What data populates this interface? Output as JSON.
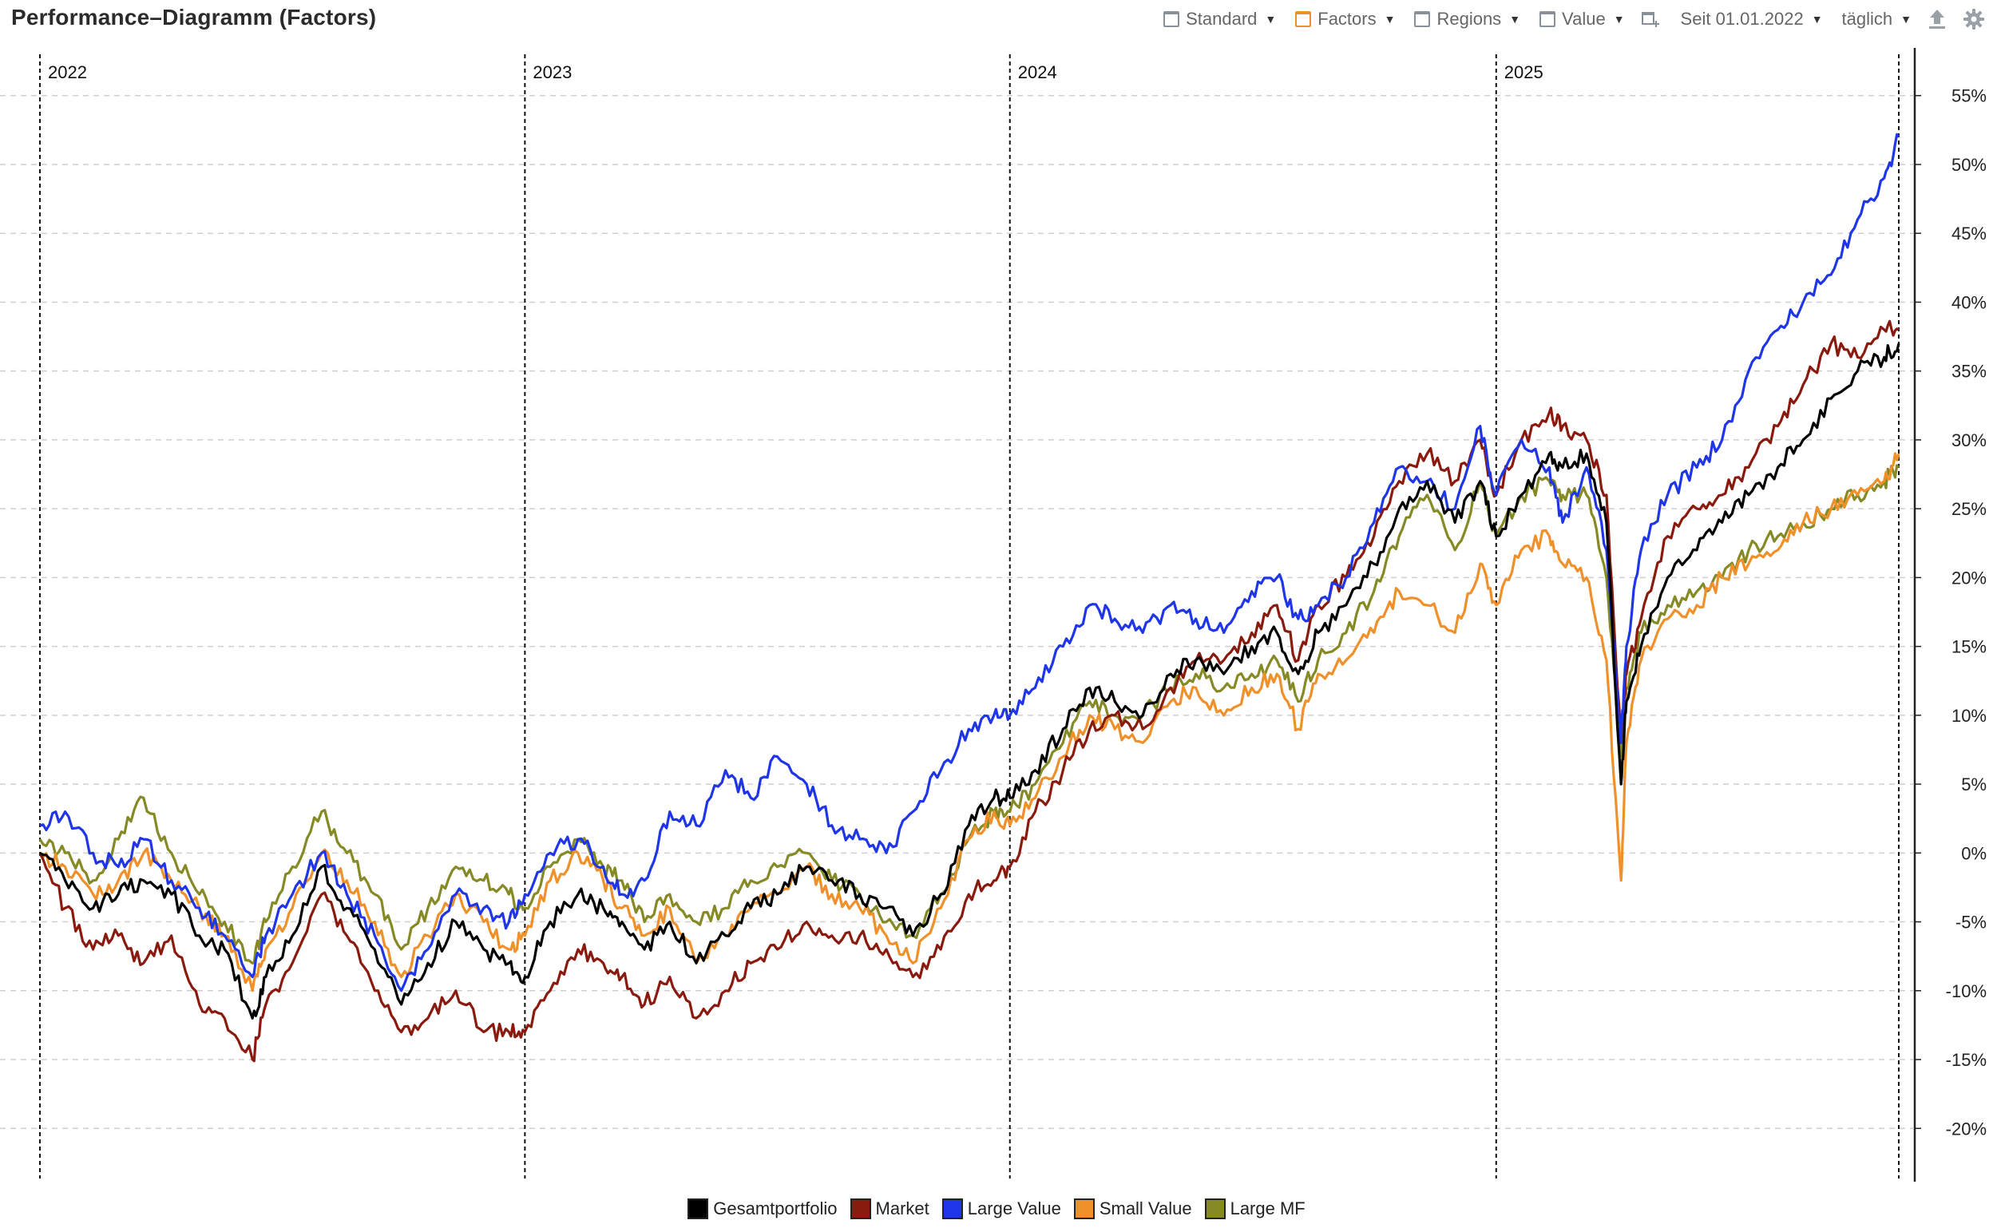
{
  "title": "Performance–Diagramm (Factors)",
  "toolbar": {
    "standard": "Standard",
    "factors": "Factors",
    "regions": "Regions",
    "value": "Value",
    "since": "Seit 01.01.2022",
    "interval": "täglich"
  },
  "colors": {
    "Gesamtportfolio": "#000000",
    "Market": "#8b1a0e",
    "Large Value": "#1f35e8",
    "Small Value": "#f0902a",
    "Large MF": "#868a24",
    "grid": "#cfcfcf",
    "axis": "#222222"
  },
  "chart_data": {
    "type": "line",
    "title": "Performance–Diagramm (Factors)",
    "xlabel": "",
    "ylabel": "",
    "x_range": [
      "2022-01-01",
      "2025-10-31"
    ],
    "ylim": [
      -23,
      58
    ],
    "y_ticks": [
      -20,
      -15,
      -10,
      -5,
      0,
      5,
      10,
      15,
      20,
      25,
      30,
      35,
      40,
      45,
      50,
      55
    ],
    "y_tick_labels": [
      "-20%",
      "-15%",
      "-10%",
      "-5%",
      "0%",
      "5%",
      "10%",
      "15%",
      "20%",
      "25%",
      "30%",
      "35%",
      "40%",
      "45%",
      "50%",
      "55%"
    ],
    "year_markers": [
      {
        "label": "2022",
        "x": "2022-01-01"
      },
      {
        "label": "2023",
        "x": "2023-01-01"
      },
      {
        "label": "2024",
        "x": "2024-01-01"
      },
      {
        "label": "2025",
        "x": "2025-01-01"
      }
    ],
    "grid": true,
    "legend_position": "bottom",
    "series": [
      {
        "name": "Gesamtportfolio",
        "x": [
          "2022-01-01",
          "2022-01-20",
          "2022-02-10",
          "2022-03-01",
          "2022-03-20",
          "2022-04-10",
          "2022-05-01",
          "2022-05-20",
          "2022-06-10",
          "2022-06-20",
          "2022-07-10",
          "2022-08-01",
          "2022-08-20",
          "2022-09-10",
          "2022-09-30",
          "2022-10-20",
          "2022-11-10",
          "2022-12-01",
          "2022-12-20",
          "2023-01-01",
          "2023-01-20",
          "2023-02-10",
          "2023-03-01",
          "2023-03-15",
          "2023-04-01",
          "2023-04-20",
          "2023-05-10",
          "2023-06-01",
          "2023-06-20",
          "2023-07-10",
          "2023-08-01",
          "2023-08-20",
          "2023-09-10",
          "2023-09-30",
          "2023-10-20",
          "2023-11-10",
          "2023-12-01",
          "2023-12-20",
          "2024-01-01",
          "2024-01-20",
          "2024-02-10",
          "2024-03-01",
          "2024-03-20",
          "2024-04-10",
          "2024-05-01",
          "2024-05-20",
          "2024-06-10",
          "2024-07-01",
          "2024-07-20",
          "2024-08-05",
          "2024-08-20",
          "2024-09-10",
          "2024-10-01",
          "2024-10-20",
          "2024-11-10",
          "2024-12-01",
          "2024-12-20",
          "2025-01-01",
          "2025-01-20",
          "2025-02-10",
          "2025-02-20",
          "2025-03-10",
          "2025-03-25",
          "2025-04-05",
          "2025-04-09",
          "2025-04-20",
          "2025-05-10",
          "2025-06-01",
          "2025-06-20",
          "2025-07-10",
          "2025-08-01",
          "2025-08-20",
          "2025-09-10",
          "2025-09-30",
          "2025-10-20",
          "2025-10-31"
        ],
        "values": [
          0,
          -2,
          -4,
          -3,
          -2,
          -3,
          -6,
          -7,
          -12,
          -9,
          -6,
          -1,
          -4,
          -7,
          -11,
          -8,
          -5,
          -7,
          -8,
          -9,
          -5,
          -3,
          -4,
          -5,
          -7,
          -5,
          -8,
          -6,
          -4,
          -3,
          -1,
          -2,
          -3,
          -4,
          -6,
          -3,
          2,
          4,
          4,
          6,
          9,
          12,
          11,
          10,
          13,
          14,
          13,
          15,
          16,
          13,
          16,
          18,
          21,
          25,
          27,
          24,
          27,
          23,
          26,
          29,
          28,
          29,
          24,
          5,
          11,
          15,
          20,
          22,
          24,
          26,
          28,
          30,
          33,
          35,
          36,
          37
        ]
      },
      {
        "name": "Market",
        "x": [
          "2022-01-01",
          "2022-01-20",
          "2022-02-10",
          "2022-03-01",
          "2022-03-20",
          "2022-04-10",
          "2022-05-01",
          "2022-05-20",
          "2022-06-10",
          "2022-06-20",
          "2022-07-10",
          "2022-08-01",
          "2022-08-20",
          "2022-09-10",
          "2022-09-30",
          "2022-10-20",
          "2022-11-10",
          "2022-12-01",
          "2022-12-20",
          "2023-01-01",
          "2023-01-20",
          "2023-02-10",
          "2023-03-01",
          "2023-03-15",
          "2023-04-01",
          "2023-04-20",
          "2023-05-10",
          "2023-06-01",
          "2023-06-20",
          "2023-07-10",
          "2023-08-01",
          "2023-08-20",
          "2023-09-10",
          "2023-09-30",
          "2023-10-20",
          "2023-11-10",
          "2023-12-01",
          "2023-12-20",
          "2024-01-01",
          "2024-01-20",
          "2024-02-10",
          "2024-03-01",
          "2024-03-20",
          "2024-04-10",
          "2024-05-01",
          "2024-05-20",
          "2024-06-10",
          "2024-07-01",
          "2024-07-20",
          "2024-08-05",
          "2024-08-20",
          "2024-09-10",
          "2024-10-01",
          "2024-10-20",
          "2024-11-10",
          "2024-12-01",
          "2024-12-20",
          "2025-01-01",
          "2025-01-20",
          "2025-02-10",
          "2025-02-20",
          "2025-03-10",
          "2025-03-25",
          "2025-04-05",
          "2025-04-09",
          "2025-04-20",
          "2025-05-10",
          "2025-06-01",
          "2025-06-20",
          "2025-07-10",
          "2025-08-01",
          "2025-08-20",
          "2025-09-10",
          "2025-09-30",
          "2025-10-20",
          "2025-10-31"
        ],
        "values": [
          0,
          -4,
          -7,
          -6,
          -8,
          -6,
          -11,
          -12,
          -15,
          -11,
          -8,
          -3,
          -6,
          -10,
          -13,
          -12,
          -10,
          -13,
          -13,
          -13,
          -10,
          -7,
          -8,
          -9,
          -11,
          -9,
          -12,
          -10,
          -8,
          -7,
          -5,
          -6,
          -6,
          -7,
          -9,
          -7,
          -3,
          -2,
          -1,
          3,
          6,
          9,
          10,
          9,
          12,
          14,
          14,
          16,
          18,
          14,
          18,
          20,
          23,
          27,
          29,
          27,
          30,
          26,
          30,
          32,
          31,
          30,
          26,
          8,
          13,
          17,
          23,
          25,
          26,
          28,
          31,
          34,
          37,
          36,
          38,
          38
        ]
      },
      {
        "name": "Large Value",
        "x": [
          "2022-01-01",
          "2022-01-20",
          "2022-02-10",
          "2022-03-01",
          "2022-03-20",
          "2022-04-10",
          "2022-05-01",
          "2022-05-20",
          "2022-06-10",
          "2022-06-20",
          "2022-07-10",
          "2022-08-01",
          "2022-08-20",
          "2022-09-10",
          "2022-09-30",
          "2022-10-20",
          "2022-11-10",
          "2022-12-01",
          "2022-12-20",
          "2023-01-01",
          "2023-01-20",
          "2023-02-10",
          "2023-03-01",
          "2023-03-15",
          "2023-04-01",
          "2023-04-20",
          "2023-05-10",
          "2023-06-01",
          "2023-06-20",
          "2023-07-10",
          "2023-08-01",
          "2023-08-20",
          "2023-09-10",
          "2023-09-30",
          "2023-10-20",
          "2023-11-10",
          "2023-12-01",
          "2023-12-20",
          "2024-01-01",
          "2024-01-20",
          "2024-02-10",
          "2024-03-01",
          "2024-03-20",
          "2024-04-10",
          "2024-05-01",
          "2024-05-20",
          "2024-06-10",
          "2024-07-01",
          "2024-07-20",
          "2024-08-05",
          "2024-08-20",
          "2024-09-10",
          "2024-10-01",
          "2024-10-20",
          "2024-11-10",
          "2024-12-01",
          "2024-12-20",
          "2025-01-01",
          "2025-01-20",
          "2025-02-10",
          "2025-02-20",
          "2025-03-10",
          "2025-03-25",
          "2025-04-05",
          "2025-04-09",
          "2025-04-20",
          "2025-05-10",
          "2025-06-01",
          "2025-06-20",
          "2025-07-10",
          "2025-08-01",
          "2025-08-20",
          "2025-09-10",
          "2025-09-30",
          "2025-10-20",
          "2025-10-31"
        ],
        "values": [
          2,
          3,
          0,
          -1,
          1,
          -2,
          -4,
          -6,
          -9,
          -6,
          -3,
          0,
          -3,
          -6,
          -10,
          -7,
          -3,
          -4,
          -5,
          -3,
          0,
          1,
          -1,
          -3,
          -2,
          3,
          2,
          6,
          4,
          7,
          5,
          2,
          1,
          0,
          3,
          6,
          9,
          10,
          10,
          12,
          15,
          18,
          17,
          16,
          18,
          17,
          16,
          19,
          20,
          17,
          18,
          20,
          24,
          28,
          27,
          25,
          31,
          26,
          30,
          28,
          24,
          28,
          22,
          8,
          15,
          22,
          26,
          28,
          30,
          35,
          38,
          40,
          42,
          46,
          49,
          52
        ]
      },
      {
        "name": "Small Value",
        "x": [
          "2022-01-01",
          "2022-01-20",
          "2022-02-10",
          "2022-03-01",
          "2022-03-20",
          "2022-04-10",
          "2022-05-01",
          "2022-05-20",
          "2022-06-10",
          "2022-06-20",
          "2022-07-10",
          "2022-08-01",
          "2022-08-20",
          "2022-09-10",
          "2022-09-30",
          "2022-10-20",
          "2022-11-10",
          "2022-12-01",
          "2022-12-20",
          "2023-01-01",
          "2023-01-20",
          "2023-02-10",
          "2023-03-01",
          "2023-03-15",
          "2023-04-01",
          "2023-04-20",
          "2023-05-10",
          "2023-06-01",
          "2023-06-20",
          "2023-07-10",
          "2023-08-01",
          "2023-08-20",
          "2023-09-10",
          "2023-09-30",
          "2023-10-20",
          "2023-11-10",
          "2023-12-01",
          "2023-12-20",
          "2024-01-01",
          "2024-01-20",
          "2024-02-10",
          "2024-03-01",
          "2024-03-20",
          "2024-04-10",
          "2024-05-01",
          "2024-05-20",
          "2024-06-10",
          "2024-07-01",
          "2024-07-20",
          "2024-08-05",
          "2024-08-20",
          "2024-09-10",
          "2024-10-01",
          "2024-10-20",
          "2024-11-10",
          "2024-12-01",
          "2024-12-20",
          "2025-01-01",
          "2025-01-20",
          "2025-02-10",
          "2025-02-20",
          "2025-03-10",
          "2025-03-25",
          "2025-04-05",
          "2025-04-09",
          "2025-04-20",
          "2025-05-10",
          "2025-06-01",
          "2025-06-20",
          "2025-07-10",
          "2025-08-01",
          "2025-08-20",
          "2025-09-10",
          "2025-09-30",
          "2025-10-20",
          "2025-10-31"
        ],
        "values": [
          0,
          -1,
          -3,
          -2,
          0,
          -2,
          -4,
          -6,
          -10,
          -7,
          -4,
          0,
          -2,
          -5,
          -9,
          -6,
          -3,
          -5,
          -7,
          -6,
          -2,
          0,
          -2,
          -4,
          -6,
          -4,
          -8,
          -6,
          -4,
          -3,
          -1,
          -3,
          -4,
          -6,
          -8,
          -4,
          1,
          3,
          2,
          4,
          7,
          10,
          9,
          8,
          11,
          12,
          10,
          12,
          13,
          9,
          13,
          14,
          16,
          19,
          18,
          16,
          21,
          18,
          22,
          23,
          21,
          20,
          14,
          -2,
          8,
          14,
          17,
          18,
          20,
          21,
          22,
          24,
          25,
          26,
          27,
          29
        ]
      },
      {
        "name": "Large MF",
        "x": [
          "2022-01-01",
          "2022-01-20",
          "2022-02-10",
          "2022-03-01",
          "2022-03-20",
          "2022-04-10",
          "2022-05-01",
          "2022-05-20",
          "2022-06-10",
          "2022-06-20",
          "2022-07-10",
          "2022-08-01",
          "2022-08-20",
          "2022-09-10",
          "2022-09-30",
          "2022-10-20",
          "2022-11-10",
          "2022-12-01",
          "2022-12-20",
          "2023-01-01",
          "2023-01-20",
          "2023-02-10",
          "2023-03-01",
          "2023-03-15",
          "2023-04-01",
          "2023-04-20",
          "2023-05-10",
          "2023-06-01",
          "2023-06-20",
          "2023-07-10",
          "2023-08-01",
          "2023-08-20",
          "2023-09-10",
          "2023-09-30",
          "2023-10-20",
          "2023-11-10",
          "2023-12-01",
          "2023-12-20",
          "2024-01-01",
          "2024-01-20",
          "2024-02-10",
          "2024-03-01",
          "2024-03-20",
          "2024-04-10",
          "2024-05-01",
          "2024-05-20",
          "2024-06-10",
          "2024-07-01",
          "2024-07-20",
          "2024-08-05",
          "2024-08-20",
          "2024-09-10",
          "2024-10-01",
          "2024-10-20",
          "2024-11-10",
          "2024-12-01",
          "2024-12-20",
          "2025-01-01",
          "2025-01-20",
          "2025-02-10",
          "2025-02-20",
          "2025-03-10",
          "2025-03-25",
          "2025-04-05",
          "2025-04-09",
          "2025-04-20",
          "2025-05-10",
          "2025-06-01",
          "2025-06-20",
          "2025-07-10",
          "2025-08-01",
          "2025-08-20",
          "2025-09-10",
          "2025-09-30",
          "2025-10-20",
          "2025-10-31"
        ],
        "values": [
          1,
          0,
          -2,
          1,
          4,
          0,
          -3,
          -5,
          -8,
          -5,
          -1,
          3,
          0,
          -3,
          -7,
          -4,
          -1,
          -2,
          -3,
          -4,
          -1,
          1,
          -1,
          -2,
          -5,
          -3,
          -5,
          -4,
          -2,
          -1,
          0,
          -2,
          -3,
          -5,
          -6,
          -3,
          1,
          3,
          3,
          5,
          8,
          11,
          10,
          10,
          12,
          13,
          12,
          13,
          14,
          11,
          14,
          16,
          19,
          23,
          26,
          22,
          27,
          23,
          26,
          27,
          26,
          26,
          20,
          7,
          12,
          16,
          18,
          19,
          20,
          22,
          23,
          24,
          25,
          26,
          27,
          28
        ]
      }
    ]
  }
}
